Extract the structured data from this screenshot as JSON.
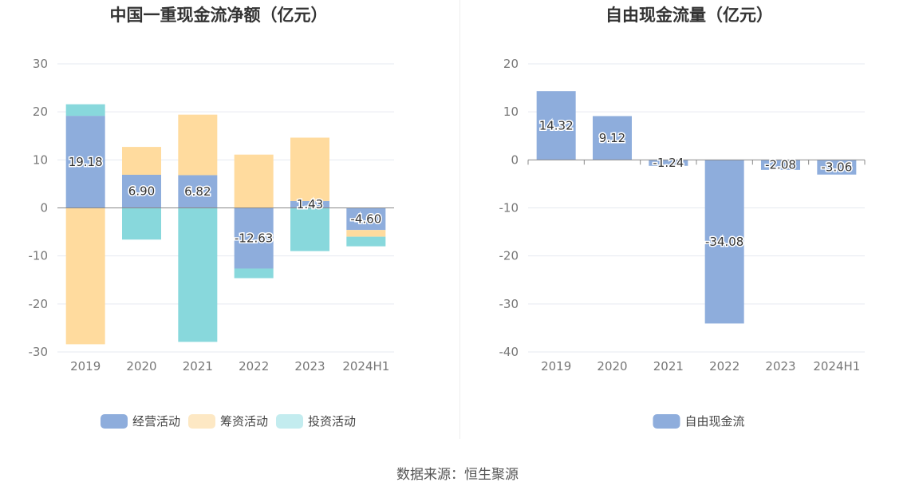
{
  "source_text": "数据来源：恒生聚源",
  "colors": {
    "operating": "#8eaddc",
    "financing": "#ffdb9e",
    "investing": "#88d8dc",
    "fcf": "#8eaddc",
    "grid": "#e6e9f0",
    "axis": "#888888"
  },
  "chart_data": [
    {
      "type": "bar",
      "stacked": true,
      "title": "中国一重现金流净额（亿元）",
      "categories": [
        "2019",
        "2020",
        "2021",
        "2022",
        "2023",
        "2024H1"
      ],
      "ylim": [
        -30,
        30
      ],
      "yticks": [
        -30,
        -20,
        -10,
        0,
        10,
        20,
        30
      ],
      "grid": true,
      "legend_position": "bottom",
      "series": [
        {
          "name": "经营活动",
          "color": "operating",
          "values": [
            19.18,
            6.9,
            6.82,
            -12.63,
            1.43,
            -4.6
          ],
          "labels": [
            "19.18",
            "6.90",
            "6.82",
            "-12.63",
            "1.43",
            "-4.60"
          ]
        },
        {
          "name": "筹资活动",
          "color": "financing",
          "values": [
            -28.4,
            5.8,
            12.6,
            11.1,
            13.2,
            -1.4
          ]
        },
        {
          "name": "投资活动",
          "color": "investing",
          "values": [
            2.4,
            -6.6,
            -27.9,
            -2.0,
            -9.0,
            -2.0
          ]
        }
      ]
    },
    {
      "type": "bar",
      "title": "自由现金流量（亿元）",
      "categories": [
        "2019",
        "2020",
        "2021",
        "2022",
        "2023",
        "2024H1"
      ],
      "ylim": [
        -40,
        20
      ],
      "yticks": [
        -40,
        -30,
        -20,
        -10,
        0,
        10,
        20
      ],
      "grid": true,
      "legend_position": "bottom",
      "series": [
        {
          "name": "自由现金流",
          "color": "fcf",
          "values": [
            14.32,
            9.12,
            -1.24,
            -34.08,
            -2.08,
            -3.06
          ],
          "labels": [
            "14.32",
            "9.12",
            "-1.24",
            "-34.08",
            "-2.08",
            "-3.06"
          ]
        }
      ]
    }
  ]
}
